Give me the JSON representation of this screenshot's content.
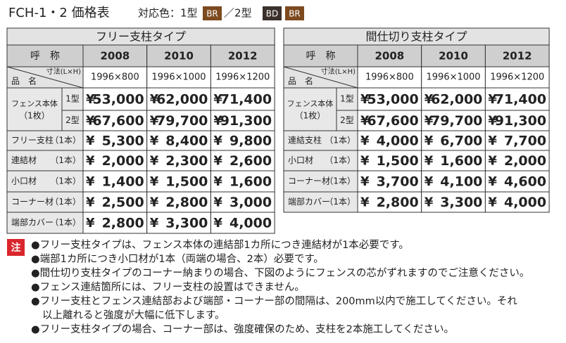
{
  "header": {
    "title": "FCH-1・2 価格表",
    "colors_label": "対応色：1型",
    "type1_colors": [
      "BR"
    ],
    "sep": "／2型",
    "type2_colors": [
      "BD",
      "BR"
    ]
  },
  "currency": "¥",
  "tables": [
    {
      "title": "フリー支柱タイプ",
      "label": "呼　称",
      "years": [
        "2008",
        "2010",
        "2012"
      ],
      "name_label": "品　名",
      "dim_label": "寸法(L×H)",
      "sizes": [
        "1996×800",
        "1996×1000",
        "1996×1200"
      ],
      "body": {
        "label": "フェンス本体",
        "qty": "（1枚）",
        "variants": [
          {
            "type": "1型",
            "prices": [
              "53,000",
              "62,000",
              "71,400"
            ]
          },
          {
            "type": "2型",
            "prices": [
              "67,600",
              "79,700",
              "91,300"
            ]
          }
        ]
      },
      "rows": [
        {
          "item": "フリー支柱",
          "qty": "（1本）",
          "prices": [
            "5,300",
            "8,400",
            "9,800"
          ]
        },
        {
          "item": "連結材",
          "qty": "（1本）",
          "prices": [
            "2,000",
            "2,300",
            "2,600"
          ]
        },
        {
          "item": "小口材",
          "qty": "（1本）",
          "prices": [
            "1,400",
            "1,500",
            "1,600"
          ]
        },
        {
          "item": "コーナー材",
          "qty": "（1本）",
          "prices": [
            "2,500",
            "2,800",
            "3,000"
          ]
        },
        {
          "item": "端部カバー",
          "qty": "（1本）",
          "prices": [
            "2,800",
            "3,300",
            "4,000"
          ]
        }
      ]
    },
    {
      "title": "間仕切り支柱タイプ",
      "label": "呼　称",
      "years": [
        "2008",
        "2010",
        "2012"
      ],
      "name_label": "品　名",
      "dim_label": "寸法(L×H)",
      "sizes": [
        "1996×800",
        "1996×1000",
        "1996×1200"
      ],
      "body": {
        "label": "フェンス本体",
        "qty": "（1枚）",
        "variants": [
          {
            "type": "1型",
            "prices": [
              "53,000",
              "62,000",
              "71,400"
            ]
          },
          {
            "type": "2型",
            "prices": [
              "67,600",
              "79,700",
              "91,300"
            ]
          }
        ]
      },
      "rows": [
        {
          "item": "連結支柱",
          "qty": "（1本）",
          "prices": [
            "4,000",
            "6,700",
            "7,700"
          ]
        },
        {
          "item": "小口材",
          "qty": "（1本）",
          "prices": [
            "1,500",
            "1,600",
            "2,000"
          ]
        },
        {
          "item": "コーナー材",
          "qty": "（1本）",
          "prices": [
            "3,700",
            "4,100",
            "4,600"
          ]
        },
        {
          "item": "端部カバー",
          "qty": "（1本）",
          "prices": [
            "2,800",
            "3,300",
            "4,000"
          ]
        }
      ]
    }
  ],
  "notes": {
    "mark": "注",
    "lines": [
      "●フリー支柱タイプは、フェンス本体の連結部1カ所につき連結材が1本必要です。",
      "●端部1カ所につき小口材が1本（両端の場合、2本）必要です。",
      "●間仕切り支柱タイプのコーナー納まりの場合、下図のようにフェンスの芯がずれますのでご注意ください。",
      "●フェンス連結箇所には、フリー支柱の設置はできません。",
      "●フリー支柱とフェンス連結部および端部・コーナー部の間隔は、200mm以内で施工してください。それ",
      "以上離れると強度が大幅に低下します。",
      "●フリー支柱タイプの場合、コーナー部は、強度確保のため、支柱を2本施工してください。"
    ]
  }
}
